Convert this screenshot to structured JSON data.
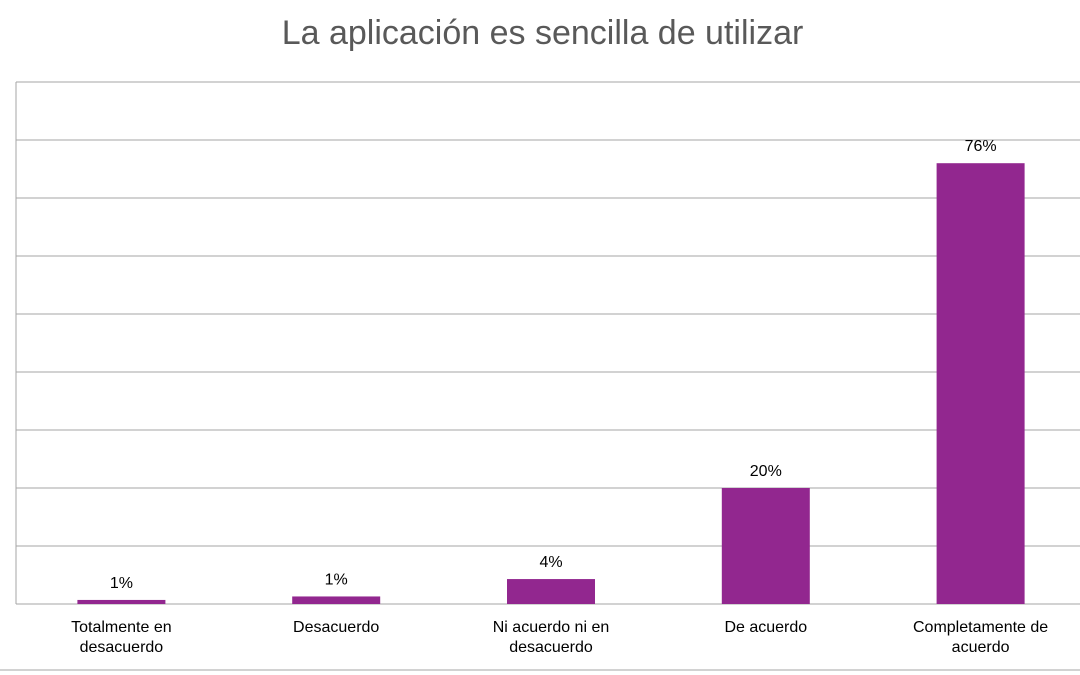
{
  "chart_data": {
    "type": "bar",
    "title": "La aplicación es sencilla de utilizar",
    "categories": [
      [
        "Totalmente en",
        "desacuerdo"
      ],
      [
        "Desacuerdo"
      ],
      [
        "Ni acuerdo ni en",
        "desacuerdo"
      ],
      [
        "De acuerdo"
      ],
      [
        "Completamente de",
        "acuerdo"
      ]
    ],
    "values": [
      0.7,
      1.3,
      4.3,
      20,
      76
    ],
    "data_labels": [
      "1%",
      "1%",
      "4%",
      "20%",
      "76%"
    ],
    "ylim": [
      0,
      90
    ],
    "y_gridline_step": 10,
    "grid": true,
    "legend": "none",
    "colors": {
      "bar": "#92278F",
      "grid": "#A6A6A6",
      "title": "#595959"
    }
  }
}
